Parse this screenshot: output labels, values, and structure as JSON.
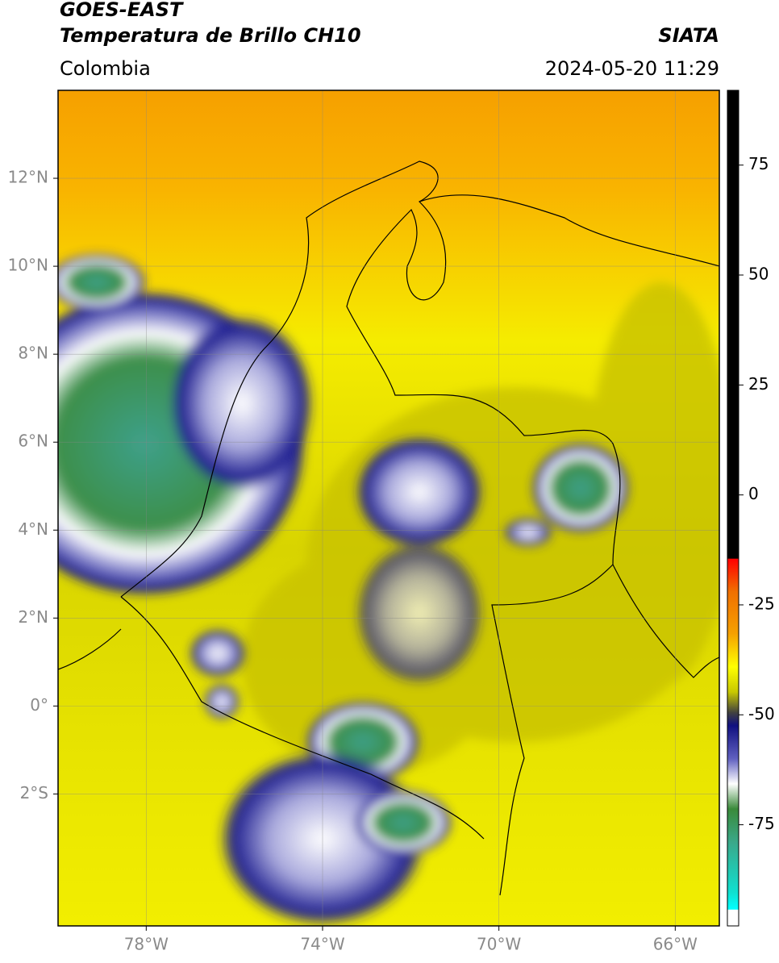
{
  "header": {
    "satellite": "GOES-EAST",
    "product": "Temperatura de Brillo CH10",
    "source": "SIATA",
    "region": "Colombia",
    "datetime": "2024-05-20 11:29"
  },
  "map": {
    "xlim": [
      -80,
      -65
    ],
    "ylim": [
      -5,
      14
    ],
    "xticks": [
      {
        "value": -78,
        "label": "78°W"
      },
      {
        "value": -74,
        "label": "74°W"
      },
      {
        "value": -70,
        "label": "70°W"
      },
      {
        "value": -66,
        "label": "66°W"
      }
    ],
    "yticks": [
      {
        "value": 12,
        "label": "12°N"
      },
      {
        "value": 10,
        "label": "10°N"
      },
      {
        "value": 8,
        "label": "8°N"
      },
      {
        "value": 6,
        "label": "6°N"
      },
      {
        "value": 4,
        "label": "4°N"
      },
      {
        "value": 2,
        "label": "2°N"
      },
      {
        "value": 0,
        "label": "0°"
      },
      {
        "value": -2,
        "label": "2°S"
      }
    ],
    "grid": true
  },
  "colorbar": {
    "lim": [
      -98,
      92
    ],
    "ticks": [
      75,
      50,
      25,
      0,
      -25,
      -50,
      -75
    ]
  }
}
